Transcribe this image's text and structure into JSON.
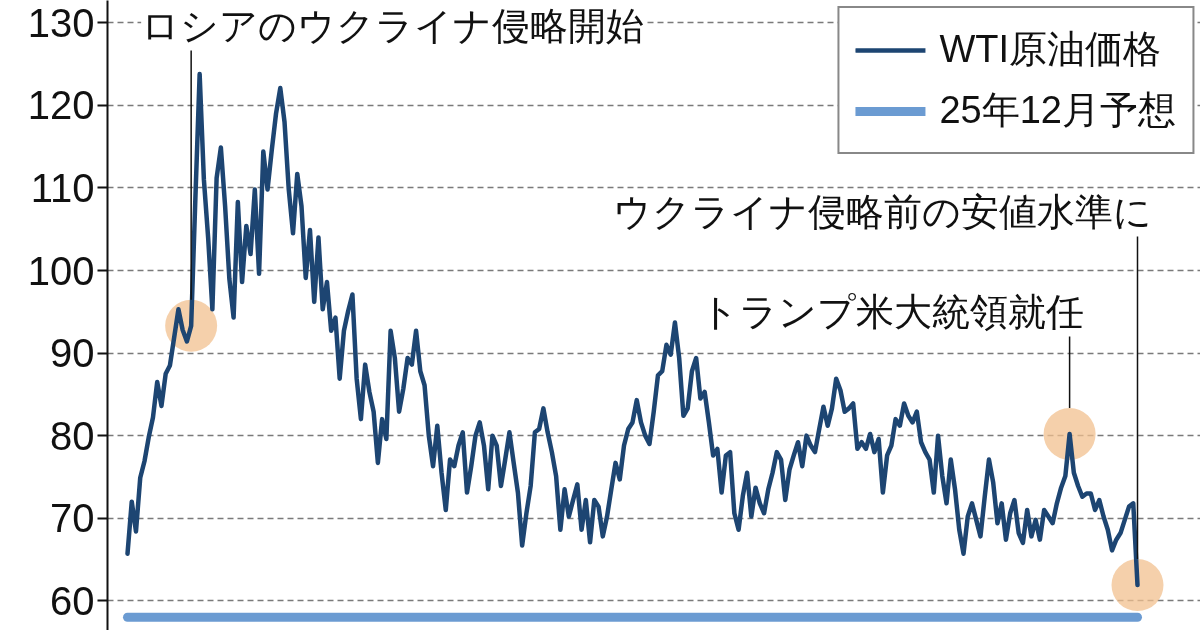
{
  "chart_data": {
    "type": "line",
    "categories": [
      null,
      null,
      null,
      null,
      null,
      null,
      null,
      null,
      null,
      null,
      null,
      null,
      null,
      null,
      null,
      null,
      null,
      null,
      null,
      null,
      null,
      null,
      null,
      null,
      null,
      null,
      null,
      null,
      null,
      null,
      null,
      null,
      null,
      null,
      null,
      null,
      null,
      null,
      null,
      null,
      null,
      null,
      null,
      null,
      null,
      null,
      null,
      null,
      null,
      null,
      null,
      null,
      null,
      null,
      null,
      null,
      null,
      null,
      null,
      null,
      null,
      null,
      null,
      null,
      null,
      null,
      null,
      null,
      null,
      null,
      null,
      null,
      null,
      null,
      null,
      null,
      null,
      null,
      null,
      null,
      null,
      null,
      null,
      null,
      null,
      null,
      null,
      null,
      null,
      null,
      null,
      null,
      null,
      null,
      null,
      null,
      null,
      null,
      null,
      null,
      null,
      null,
      null,
      null,
      null,
      null,
      null,
      null,
      null,
      null,
      null,
      null,
      null,
      null,
      null,
      null,
      null,
      null,
      null,
      null,
      null,
      null,
      null,
      null,
      null,
      null,
      null,
      null,
      null,
      null,
      null,
      null,
      null,
      null,
      null,
      null,
      null,
      null,
      null,
      null,
      null,
      null,
      null,
      null,
      null,
      null,
      null,
      null,
      null,
      null,
      null,
      null,
      null,
      null,
      null,
      null,
      null,
      null,
      null,
      null,
      null,
      null,
      null,
      null,
      null,
      null,
      null,
      null,
      null,
      null,
      null,
      null,
      null,
      null,
      null,
      null,
      null,
      null,
      null,
      null,
      null,
      null,
      null,
      null,
      null,
      null,
      null,
      null,
      null,
      null,
      null,
      null,
      null,
      null,
      null,
      null,
      null,
      null,
      null,
      null,
      null,
      null,
      null,
      null,
      null,
      null,
      null,
      null,
      null,
      null,
      null,
      null,
      null,
      null,
      null,
      null,
      null,
      null,
      null,
      null,
      null,
      null,
      null,
      null,
      null,
      null,
      null,
      null,
      null,
      null,
      null,
      null,
      null,
      null,
      null,
      null,
      null,
      null,
      null
    ],
    "series": [
      {
        "name": "WTI原油価格",
        "color": "#1d4572",
        "values": [
          65.7,
          72,
          68.4,
          74.9,
          76.9,
          79.8,
          82.2,
          86.5,
          83.6,
          87.5,
          88.5,
          91.9,
          95.3,
          92.8,
          91.4,
          93.3,
          108.8,
          123.8,
          111,
          104,
          95.3,
          111.2,
          114.9,
          107.8,
          99,
          94.3,
          108.3,
          98.6,
          105.4,
          102,
          109.8,
          99.6,
          114.4,
          109.8,
          114.6,
          119,
          122.1,
          118,
          109.8,
          104.5,
          111.7,
          107.8,
          99.1,
          104.9,
          96.2,
          104,
          95.3,
          98.6,
          92.7,
          94.3,
          86.9,
          92.7,
          95.1,
          97.1,
          86.9,
          82,
          88.6,
          85.3,
          82.9,
          76.7,
          82,
          79.6,
          92.7,
          89.4,
          82.9,
          85.7,
          89.4,
          88.6,
          92.7,
          87.8,
          86.1,
          80,
          76.3,
          81.2,
          75.5,
          71,
          77.1,
          76.3,
          78.8,
          80.4,
          73.1,
          76.3,
          80,
          81.6,
          78.8,
          73.5,
          80,
          78.8,
          73.9,
          77.1,
          80.4,
          76.7,
          73.1,
          66.7,
          70.6,
          73.9,
          80.4,
          80.8,
          83.3,
          80.4,
          78,
          75.1,
          68.6,
          73.5,
          70.2,
          72.2,
          74.1,
          68.6,
          72.2,
          67.1,
          72.2,
          71.4,
          67.8,
          70.2,
          73.5,
          76.7,
          74.7,
          78.8,
          80.8,
          81.6,
          84.3,
          81.6,
          80,
          79,
          82.9,
          87.3,
          87.8,
          91,
          89.8,
          93.7,
          89.4,
          82.4,
          83.3,
          87.8,
          89.4,
          84.5,
          85.3,
          81.6,
          77.6,
          78.4,
          73.1,
          77.6,
          78,
          70.6,
          68.6,
          72.7,
          75.5,
          70.2,
          73.7,
          71.8,
          70.6,
          73.5,
          75.5,
          78,
          77.1,
          72.2,
          75.9,
          77.6,
          79.2,
          76.3,
          80,
          78.8,
          78,
          80.8,
          83.5,
          81.2,
          83.3,
          86.9,
          85.5,
          82.9,
          83.3,
          83.9,
          78.4,
          79.2,
          78.4,
          80.2,
          78,
          79.6,
          73.1,
          77.6,
          78.8,
          82,
          81.2,
          83.9,
          82.4,
          81.6,
          82.9,
          79.2,
          78,
          77.1,
          73.1,
          80,
          75.1,
          71.8,
          77.1,
          73.5,
          68.6,
          65.7,
          70.2,
          71.8,
          69.8,
          67.8,
          72.6,
          77.1,
          74.3,
          69.4,
          71.8,
          67.4,
          70.6,
          72.2,
          68.2,
          67,
          71,
          67.8,
          69.8,
          67.4,
          71,
          70.2,
          69.4,
          71.8,
          73.7,
          75.1,
          80.2,
          75.5,
          73.9,
          72.6,
          73,
          73,
          71,
          72.2,
          70.2,
          68.6,
          66.1,
          67.4,
          68.2,
          69.8,
          71.4,
          71.8,
          61.9
        ]
      },
      {
        "type": "scatter",
        "color": "#f2c08f",
        "marker": "circle",
        "values": [
          null,
          null,
          null,
          null,
          null,
          null,
          null,
          null,
          null,
          null,
          null,
          null,
          null,
          null,
          null,
          93.3,
          null,
          null,
          null,
          null,
          null,
          null,
          null,
          null,
          null,
          null,
          null,
          null,
          null,
          null,
          null,
          null,
          null,
          null,
          null,
          null,
          null,
          null,
          null,
          null,
          null,
          null,
          null,
          null,
          null,
          null,
          null,
          null,
          null,
          null,
          null,
          null,
          null,
          null,
          null,
          null,
          null,
          null,
          null,
          null,
          null,
          null,
          null,
          null,
          null,
          null,
          null,
          null,
          null,
          null,
          null,
          null,
          null,
          null,
          null,
          null,
          null,
          null,
          null,
          null,
          null,
          null,
          null,
          null,
          null,
          null,
          null,
          null,
          null,
          null,
          null,
          null,
          null,
          null,
          null,
          null,
          null,
          null,
          null,
          null,
          null,
          null,
          null,
          null,
          null,
          null,
          null,
          null,
          null,
          null,
          null,
          null,
          null,
          null,
          null,
          null,
          null,
          null,
          null,
          null,
          null,
          null,
          null,
          null,
          null,
          null,
          null,
          null,
          null,
          null,
          null,
          null,
          null,
          null,
          null,
          null,
          null,
          null,
          null,
          null,
          null,
          null,
          null,
          null,
          null,
          null,
          null,
          null,
          null,
          null,
          null,
          null,
          null,
          null,
          null,
          null,
          null,
          null,
          null,
          null,
          null,
          null,
          null,
          null,
          null,
          null,
          null,
          null,
          null,
          null,
          null,
          null,
          null,
          null,
          null,
          null,
          null,
          null,
          null,
          null,
          null,
          null,
          null,
          null,
          null,
          null,
          null,
          null,
          null,
          null,
          null,
          null,
          null,
          null,
          null,
          null,
          null,
          null,
          null,
          null,
          null,
          null,
          null,
          null,
          null,
          null,
          null,
          null,
          null,
          null,
          null,
          null,
          null,
          null,
          null,
          null,
          null,
          null,
          null,
          null,
          null,
          null,
          80.2,
          null,
          null,
          null,
          null,
          null,
          null,
          null,
          null,
          null,
          null,
          null,
          null,
          null,
          null,
          null,
          61.9
        ]
      }
    ],
    "ylim": [
      56.4,
      132.7
    ],
    "yticks": [
      60,
      70,
      80,
      90,
      100,
      110,
      120,
      130
    ],
    "grid": "y",
    "tick_labels": "y",
    "legend": "top right",
    "ref_lines": [
      {
        "axis": "y",
        "value": 58,
        "label": "25年12月予想",
        "color": "#6b9bd2"
      }
    ],
    "annotations": [
      "ロシアのウクライナ侵略開始",
      "ウクライナ侵略前の安値水準に",
      "トランプ米大統領就任"
    ]
  }
}
